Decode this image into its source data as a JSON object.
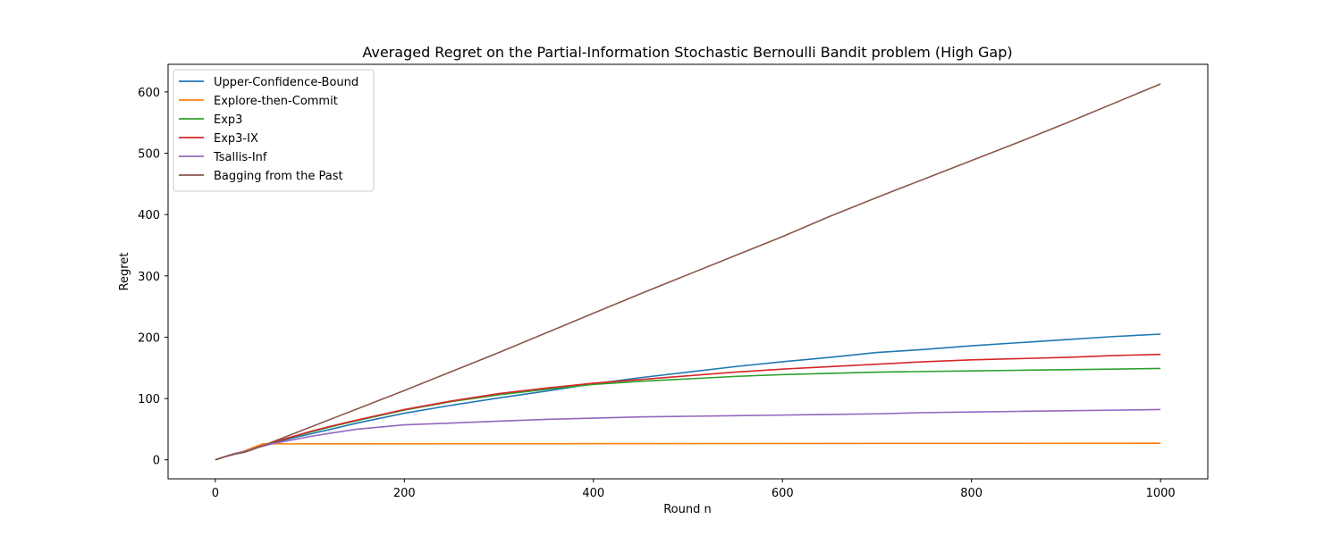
{
  "chart_data": {
    "type": "line",
    "title": "Averaged Regret on the Partial-Information Stochastic Bernoulli Bandit problem (High Gap)",
    "xlabel": "Round n",
    "ylabel": "Regret",
    "xlim": [
      -50,
      1050
    ],
    "ylim": [
      -31,
      645
    ],
    "xticks": [
      0,
      200,
      400,
      600,
      800,
      1000
    ],
    "yticks": [
      0,
      100,
      200,
      300,
      400,
      500,
      600
    ],
    "grid": false,
    "legend_position": "top-left",
    "series": [
      {
        "name": "Upper-Confidence-Bound",
        "color": "#1f77b4",
        "x": [
          0,
          10,
          20,
          30,
          40,
          50,
          60,
          80,
          100,
          120,
          150,
          200,
          250,
          300,
          350,
          400,
          450,
          500,
          550,
          600,
          650,
          700,
          750,
          800,
          850,
          900,
          950,
          1000
        ],
        "y": [
          0,
          5,
          10,
          12,
          17,
          23,
          27,
          35,
          42,
          49,
          60,
          76,
          89,
          101,
          112,
          124,
          134,
          143,
          152,
          160,
          167,
          175,
          180,
          186,
          191,
          196,
          201,
          205
        ]
      },
      {
        "name": "Explore-then-Commit",
        "color": "#ff7f0e",
        "x": [
          0,
          10,
          20,
          30,
          40,
          50,
          1000
        ],
        "y": [
          0,
          5,
          10,
          14,
          20,
          26,
          27
        ]
      },
      {
        "name": "Exp3",
        "color": "#2ca02c",
        "x": [
          0,
          10,
          20,
          30,
          40,
          50,
          60,
          80,
          100,
          120,
          150,
          200,
          250,
          300,
          350,
          400,
          450,
          500,
          550,
          600,
          650,
          700,
          750,
          800,
          850,
          900,
          950,
          1000
        ],
        "y": [
          0,
          5,
          10,
          13,
          18,
          23,
          28,
          37,
          45,
          53,
          64,
          81,
          95,
          106,
          115,
          123,
          128,
          132,
          136,
          139,
          141,
          143,
          144,
          145,
          146,
          147,
          148,
          149
        ]
      },
      {
        "name": "Exp3-IX",
        "color": "#d62728",
        "x": [
          0,
          10,
          20,
          30,
          40,
          50,
          60,
          80,
          100,
          120,
          150,
          200,
          250,
          300,
          350,
          400,
          450,
          500,
          550,
          600,
          650,
          700,
          750,
          800,
          850,
          900,
          950,
          1000
        ],
        "y": [
          0,
          5,
          10,
          13,
          18,
          23,
          28,
          37,
          46,
          54,
          65,
          82,
          96,
          108,
          117,
          125,
          131,
          137,
          143,
          148,
          152,
          156,
          160,
          163,
          165,
          167,
          170,
          172
        ]
      },
      {
        "name": "Tsallis-Inf",
        "color": "#9467bd",
        "x": [
          0,
          10,
          20,
          30,
          40,
          50,
          60,
          80,
          100,
          120,
          150,
          200,
          250,
          300,
          350,
          400,
          450,
          500,
          550,
          600,
          650,
          700,
          750,
          800,
          850,
          900,
          950,
          1000
        ],
        "y": [
          0,
          5,
          10,
          13,
          18,
          22,
          26,
          32,
          38,
          43,
          50,
          57,
          60,
          63,
          66,
          68,
          70,
          71,
          72,
          73,
          74,
          75,
          77,
          78,
          79,
          80,
          81,
          82
        ]
      },
      {
        "name": "Bagging from the Past",
        "color": "#8c564b",
        "x": [
          0,
          10,
          20,
          30,
          40,
          50,
          60,
          80,
          100,
          150,
          200,
          250,
          300,
          350,
          400,
          450,
          500,
          550,
          600,
          650,
          700,
          750,
          800,
          850,
          900,
          950,
          1000
        ],
        "y": [
          0,
          5,
          9,
          12,
          17,
          23,
          29,
          41,
          53,
          83,
          113,
          144,
          175,
          207,
          239,
          271,
          302,
          333,
          364,
          397,
          428,
          458,
          488,
          518,
          549,
          581,
          613
        ]
      }
    ]
  }
}
